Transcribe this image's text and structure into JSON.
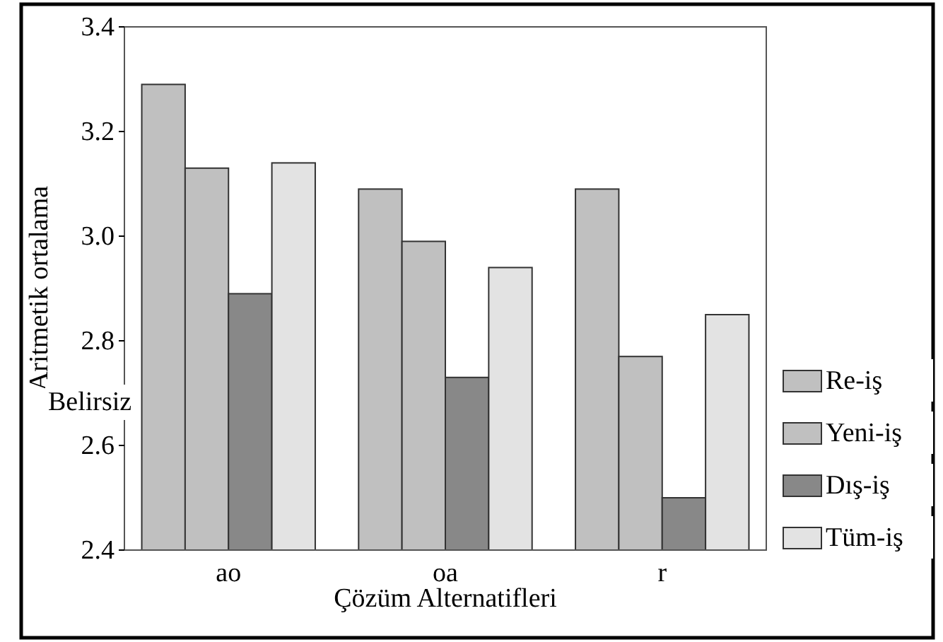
{
  "chart_data": {
    "type": "bar",
    "xlabel": "Çözüm Alternatifleri",
    "ylabel": "Aritmetik ortalama",
    "categories": [
      "ao",
      "oa",
      "r"
    ],
    "series": [
      {
        "name": "Re-iş",
        "color": "#c0c0c0",
        "values": [
          3.29,
          3.09,
          3.09
        ]
      },
      {
        "name": "Yeni-iş",
        "color": "#c0c0c0",
        "values": [
          3.13,
          2.99,
          2.77
        ]
      },
      {
        "name": "Dış-iş",
        "color": "#888888",
        "values": [
          2.89,
          2.73,
          2.5
        ]
      },
      {
        "name": "Tüm-iş",
        "color": "#e3e3e3",
        "values": [
          3.14,
          2.94,
          2.85
        ]
      }
    ],
    "ylim": [
      2.4,
      3.4
    ],
    "yticks": [
      {
        "value": 2.4,
        "label": "2.4"
      },
      {
        "value": 2.6,
        "label": "2.6"
      },
      {
        "value": 2.8,
        "label": "2.8"
      },
      {
        "value": 3.0,
        "label": "3.0"
      },
      {
        "value": 3.2,
        "label": "3.2"
      },
      {
        "value": 3.4,
        "label": "3.4"
      }
    ],
    "annotations": [
      "Belirsiz"
    ],
    "legend": "bottom right",
    "grid": false
  }
}
